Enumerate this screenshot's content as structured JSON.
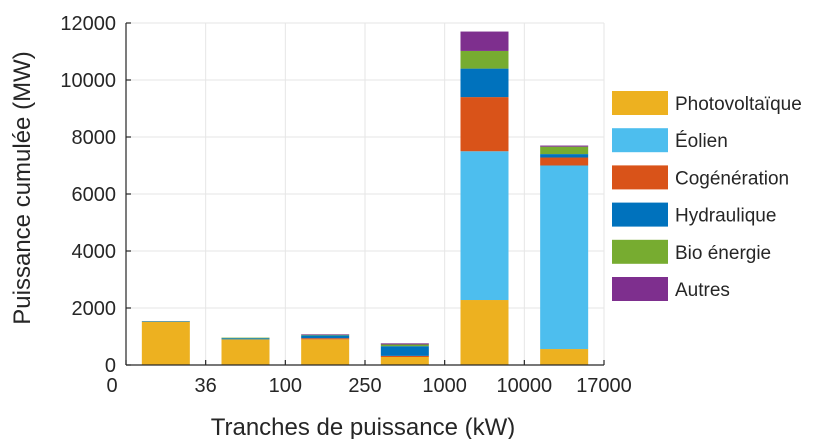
{
  "chart_data": {
    "type": "bar",
    "stacked": true,
    "xlabel": "Tranches de puissance (kW)",
    "ylabel": "Puissance cumulée (MW)",
    "ylim": [
      0,
      12000
    ],
    "yticks": [
      0,
      2000,
      4000,
      6000,
      8000,
      10000,
      12000
    ],
    "xtick_labels": [
      "0",
      "36",
      "100",
      "250",
      "1000",
      "10000",
      "17000"
    ],
    "grid": true,
    "legend": "right",
    "series": [
      {
        "name": "Photovoltaïque",
        "color": "#EDB120",
        "values": [
          1520,
          900,
          900,
          280,
          2280,
          560
        ]
      },
      {
        "name": "Éolien",
        "color": "#4DBEEE",
        "values": [
          0,
          0,
          0,
          0,
          5220,
          6440
        ]
      },
      {
        "name": "Cogénération",
        "color": "#D95319",
        "values": [
          0,
          0,
          40,
          40,
          1900,
          280
        ]
      },
      {
        "name": "Hydraulique",
        "color": "#0072BD",
        "values": [
          20,
          40,
          100,
          340,
          1000,
          120
        ]
      },
      {
        "name": "Bio énergie",
        "color": "#77AC30",
        "values": [
          0,
          20,
          20,
          60,
          620,
          260
        ]
      },
      {
        "name": "Autres",
        "color": "#7E2F8E",
        "values": [
          0,
          0,
          20,
          40,
          680,
          40
        ]
      }
    ]
  }
}
